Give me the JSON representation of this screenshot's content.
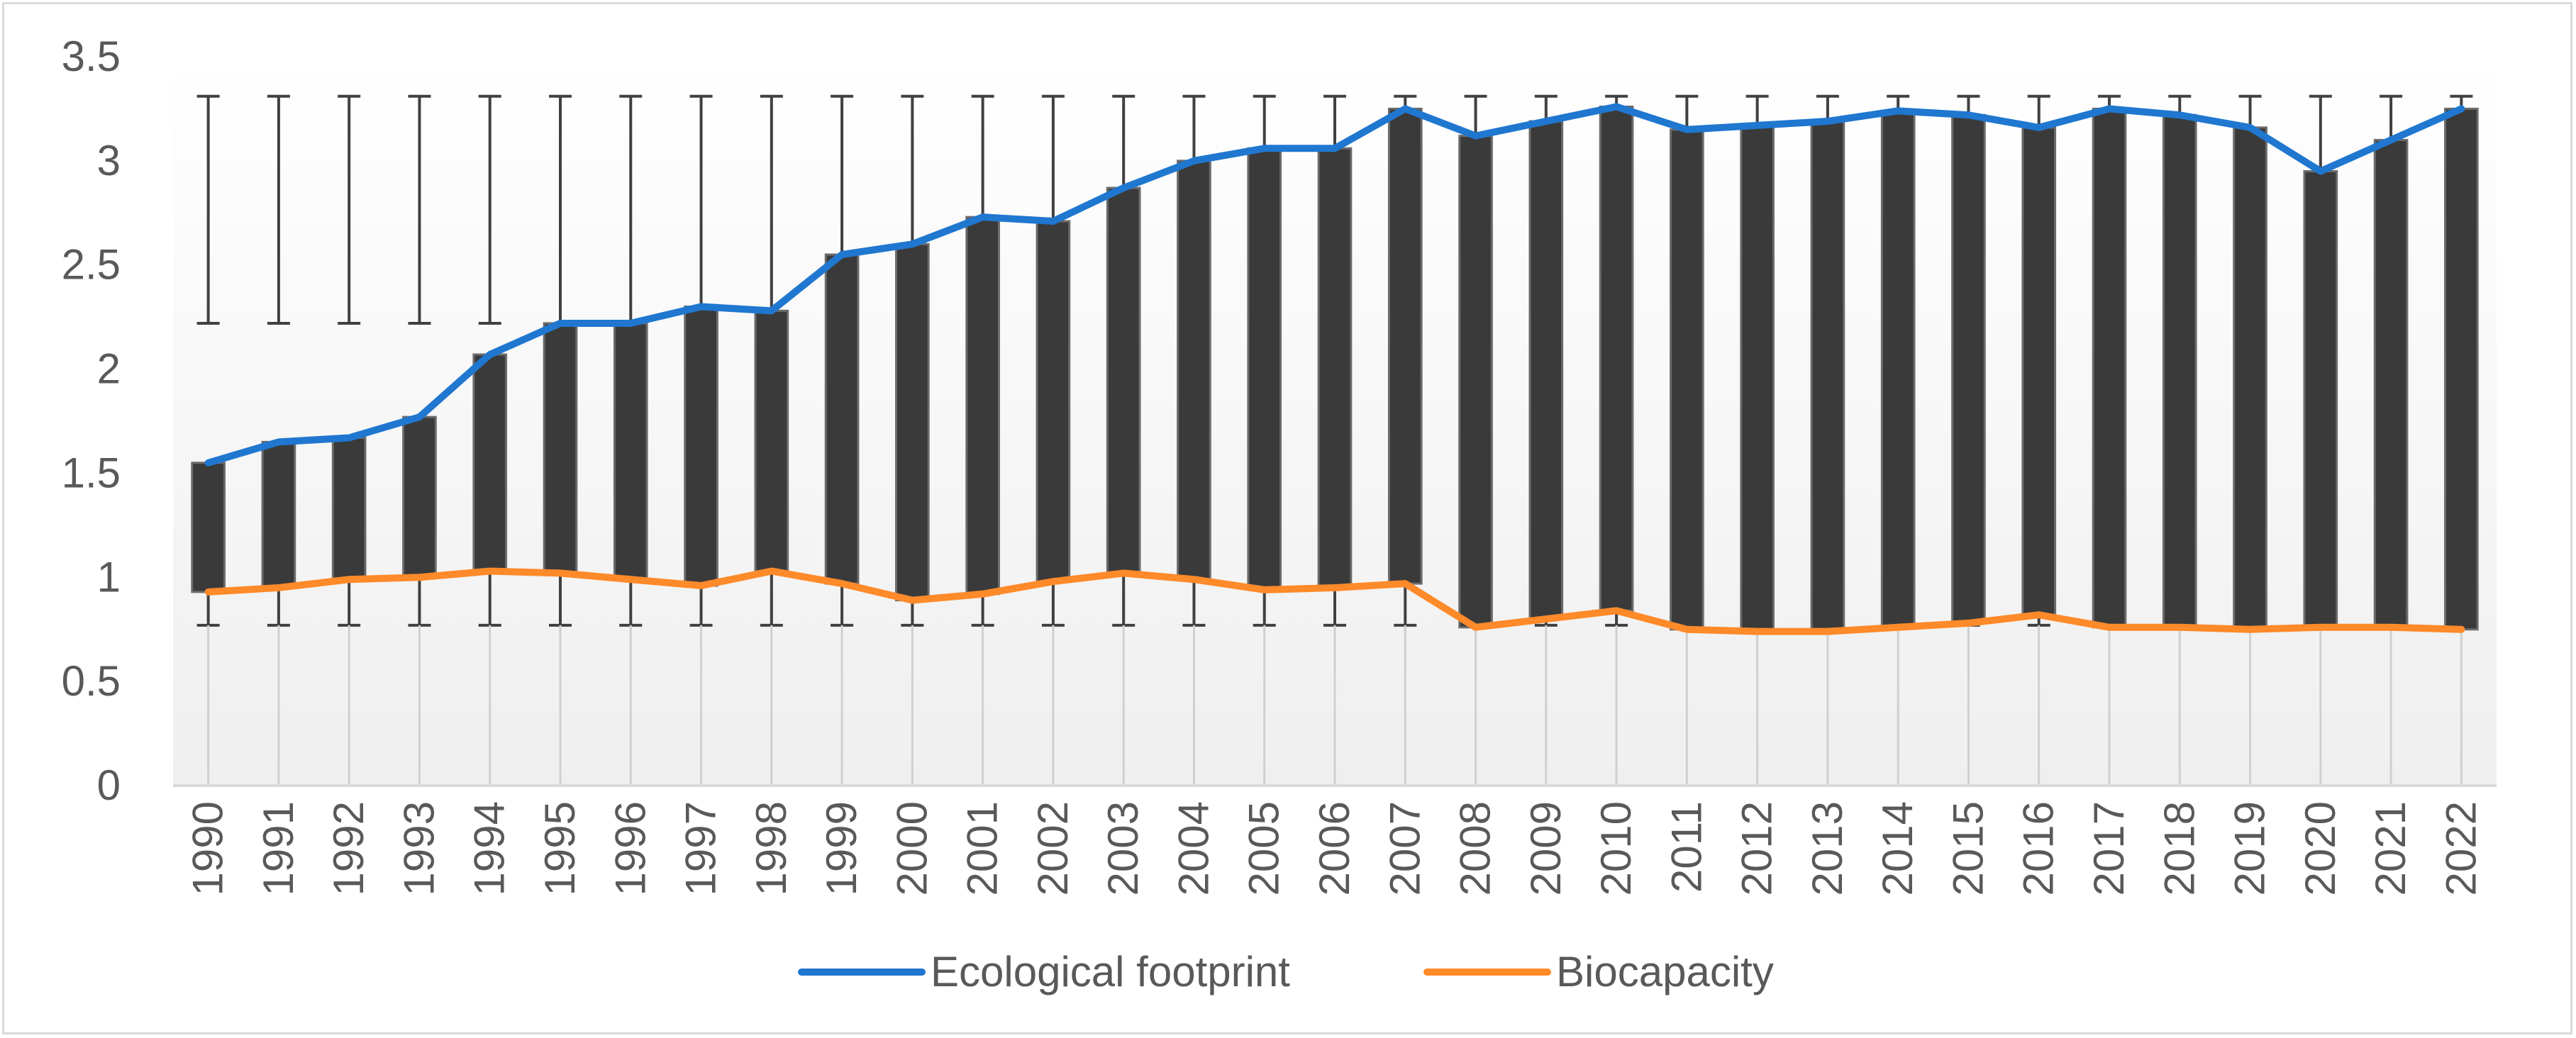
{
  "chart_data": {
    "type": "line",
    "title": "",
    "xlabel": "",
    "ylabel": "",
    "ylim": [
      0,
      3.5
    ],
    "y_ticks": [
      "0",
      "0.5",
      "1",
      "1.5",
      "2",
      "2.5",
      "3",
      "3.5"
    ],
    "x": [
      "1990",
      "1991",
      "1992",
      "1993",
      "1994",
      "1995",
      "1996",
      "1997",
      "1998",
      "1999",
      "2000",
      "2001",
      "2002",
      "2003",
      "2004",
      "2005",
      "2006",
      "2007",
      "2008",
      "2009",
      "2010",
      "2011",
      "2012",
      "2013",
      "2014",
      "2015",
      "2016",
      "2017",
      "2018",
      "2019",
      "2020",
      "2021",
      "2022"
    ],
    "series": [
      {
        "name": "Ecological footprint",
        "color": "#1f77d0",
        "values": [
          1.55,
          1.65,
          1.67,
          1.77,
          2.07,
          2.22,
          2.22,
          2.3,
          2.28,
          2.55,
          2.6,
          2.73,
          2.71,
          2.87,
          3.0,
          3.06,
          3.06,
          3.25,
          3.12,
          3.19,
          3.26,
          3.15,
          3.17,
          3.19,
          3.24,
          3.22,
          3.16,
          3.25,
          3.22,
          3.16,
          2.95,
          3.1,
          3.25
        ]
      },
      {
        "name": "Biocapacity",
        "color": "#ff8a2a",
        "values": [
          0.93,
          0.95,
          0.99,
          1.0,
          1.03,
          1.02,
          0.99,
          0.96,
          1.03,
          0.97,
          0.89,
          0.92,
          0.98,
          1.02,
          0.99,
          0.94,
          0.95,
          0.97,
          0.76,
          0.8,
          0.84,
          0.75,
          0.74,
          0.74,
          0.76,
          0.78,
          0.82,
          0.76,
          0.76,
          0.75,
          0.76,
          0.76,
          0.75
        ]
      }
    ],
    "error_bar_range": [
      0.77,
      3.31
    ],
    "error_bar_years_with_full_range": [
      "1990",
      "1991",
      "1992",
      "1993",
      "1994"
    ],
    "error_bar_lower_years_with_long_whisker": [
      "1990",
      "1991",
      "1992",
      "1993",
      "1994"
    ],
    "error_bar_upper_cap_short_years": [
      "1990",
      "1991",
      "1992",
      "1993",
      "1994"
    ],
    "bar_color": "#3a3a3a",
    "legend_position": "bottom",
    "grid": false
  }
}
